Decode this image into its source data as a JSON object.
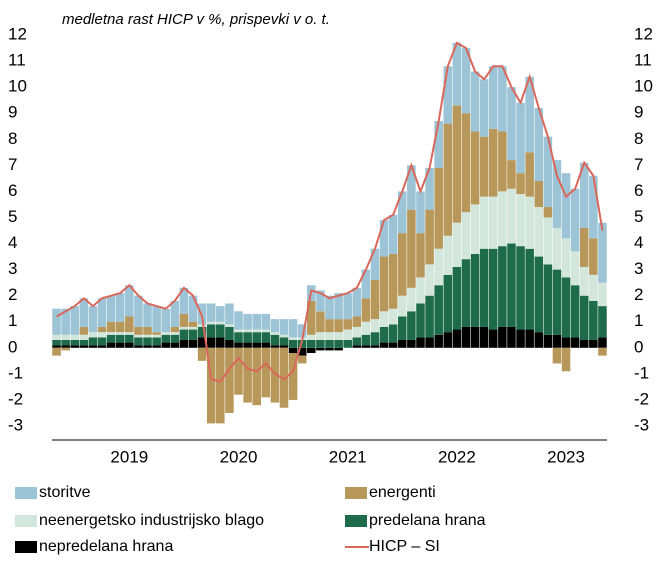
{
  "chart_data": {
    "type": "bar",
    "stacked": true,
    "title": "medletna rast HICP v %, prispevki v o. t.",
    "categories": [
      null,
      null,
      null,
      null,
      null,
      null,
      null,
      null,
      "2019",
      null,
      null,
      null,
      null,
      null,
      null,
      null,
      null,
      null,
      null,
      null,
      "2020",
      null,
      null,
      null,
      null,
      null,
      null,
      null,
      null,
      null,
      null,
      null,
      "2021",
      null,
      null,
      null,
      null,
      null,
      null,
      null,
      null,
      null,
      null,
      null,
      "2022",
      null,
      null,
      null,
      null,
      null,
      null,
      null,
      null,
      null,
      null,
      null,
      "2023",
      null,
      null,
      null,
      null
    ],
    "ylim": [
      -3,
      12
    ],
    "yticks": [
      -3,
      -2,
      -1,
      0,
      1,
      2,
      3,
      4,
      5,
      6,
      7,
      8,
      9,
      10,
      11,
      12
    ],
    "y2lim": [
      -3,
      12
    ],
    "y2ticks": [
      -3,
      -2,
      -1,
      0,
      1,
      2,
      3,
      4,
      5,
      6,
      7,
      8,
      9,
      10,
      11,
      12
    ],
    "series": [
      {
        "name": "storitve",
        "color": "#9cc4d6",
        "values": [
          1.0,
          1.0,
          1.1,
          1.1,
          1.0,
          1.1,
          1.0,
          1.1,
          1.2,
          1.2,
          0.9,
          1.0,
          0.9,
          1.0,
          1.0,
          1.0,
          0.8,
          0.7,
          0.6,
          0.8,
          0.7,
          0.6,
          0.6,
          0.6,
          0.5,
          0.6,
          0.7,
          0.5,
          0.6,
          0.8,
          0.9,
          1.0,
          1.0,
          1.1,
          1.1,
          1.2,
          1.4,
          1.5,
          1.6,
          1.7,
          1.6,
          1.6,
          1.8,
          2.2,
          2.4,
          2.5,
          2.3,
          2.2,
          2.4,
          2.5,
          2.8,
          2.7,
          2.9,
          2.8,
          2.7,
          2.6,
          2.5,
          2.4,
          2.5,
          2.4,
          2.3
        ]
      },
      {
        "name": "energenti",
        "color": "#b8985a",
        "values": [
          -0.3,
          -0.1,
          0.0,
          0.3,
          0.0,
          0.2,
          0.4,
          0.4,
          0.6,
          0.3,
          0.3,
          0.1,
          0.0,
          0.2,
          0.5,
          0.2,
          -0.5,
          -2.9,
          -2.9,
          -2.5,
          -1.8,
          -2.1,
          -2.2,
          -1.9,
          -2.1,
          -2.3,
          -1.8,
          -0.3,
          1.3,
          0.8,
          0.5,
          0.5,
          0.4,
          0.4,
          0.9,
          1.5,
          2.1,
          2.1,
          2.4,
          3.0,
          1.7,
          2.1,
          3.1,
          4.3,
          4.5,
          3.8,
          2.8,
          2.3,
          2.6,
          2.3,
          1.1,
          0.8,
          1.7,
          1.0,
          0.4,
          -0.6,
          -0.9,
          0.0,
          1.5,
          1.4,
          -0.3
        ]
      },
      {
        "name": "neenergetsko industrijsko blago",
        "color": "#d3e6dc",
        "values": [
          0.2,
          0.2,
          0.2,
          0.2,
          0.2,
          0.2,
          0.1,
          0.1,
          0.1,
          0.1,
          0.1,
          0.1,
          0.1,
          0.1,
          0.1,
          0.1,
          0.1,
          0.1,
          0.1,
          0.1,
          0.1,
          0.1,
          0.1,
          0.1,
          0.1,
          0.1,
          0.1,
          0.1,
          0.2,
          0.3,
          0.3,
          0.3,
          0.4,
          0.4,
          0.5,
          0.5,
          0.6,
          0.6,
          0.8,
          0.9,
          1.0,
          1.2,
          1.4,
          1.5,
          1.7,
          1.8,
          1.9,
          2.0,
          2.0,
          2.1,
          2.1,
          2.0,
          2.0,
          1.9,
          1.8,
          1.6,
          1.5,
          1.3,
          1.1,
          1.0,
          0.9
        ]
      },
      {
        "name": "predelana hrana",
        "color": "#1e6b4c",
        "values": [
          0.2,
          0.2,
          0.2,
          0.2,
          0.3,
          0.3,
          0.3,
          0.3,
          0.3,
          0.3,
          0.3,
          0.3,
          0.3,
          0.3,
          0.4,
          0.4,
          0.4,
          0.5,
          0.5,
          0.5,
          0.4,
          0.4,
          0.4,
          0.4,
          0.4,
          0.3,
          0.3,
          0.3,
          0.3,
          0.3,
          0.3,
          0.3,
          0.3,
          0.3,
          0.4,
          0.5,
          0.6,
          0.7,
          0.9,
          1.1,
          1.3,
          1.6,
          1.9,
          2.2,
          2.4,
          2.6,
          2.8,
          3.0,
          3.1,
          3.1,
          3.2,
          3.2,
          3.1,
          2.9,
          2.7,
          2.5,
          2.3,
          2.0,
          1.7,
          1.5,
          1.2
        ]
      },
      {
        "name": "nepredelana hrana",
        "color": "#000000",
        "values": [
          0.1,
          0.1,
          0.1,
          0.1,
          0.1,
          0.1,
          0.2,
          0.2,
          0.2,
          0.1,
          0.1,
          0.1,
          0.2,
          0.2,
          0.3,
          0.3,
          0.4,
          0.4,
          0.4,
          0.3,
          0.2,
          0.2,
          0.2,
          0.2,
          0.1,
          0.1,
          -0.2,
          -0.3,
          -0.2,
          -0.1,
          -0.1,
          -0.1,
          0.0,
          0.1,
          0.1,
          0.1,
          0.2,
          0.2,
          0.3,
          0.3,
          0.4,
          0.4,
          0.5,
          0.6,
          0.7,
          0.8,
          0.8,
          0.8,
          0.7,
          0.8,
          0.8,
          0.7,
          0.7,
          0.6,
          0.5,
          0.5,
          0.4,
          0.4,
          0.3,
          0.3,
          0.4
        ]
      },
      {
        "name": "HICP – SI",
        "type": "line",
        "color": "#d9675a",
        "values": [
          1.2,
          1.4,
          1.6,
          1.9,
          1.6,
          1.9,
          2.0,
          2.1,
          2.4,
          2.0,
          1.7,
          1.6,
          1.5,
          1.8,
          2.3,
          2.0,
          1.2,
          -1.2,
          -1.3,
          -0.8,
          -0.4,
          -0.8,
          -0.9,
          -0.6,
          -1.0,
          -1.2,
          -0.9,
          0.3,
          2.2,
          2.1,
          1.9,
          2.0,
          2.1,
          2.3,
          3.0,
          3.8,
          4.9,
          5.1,
          6.0,
          7.0,
          6.0,
          6.9,
          8.7,
          10.8,
          11.7,
          11.5,
          10.6,
          10.3,
          10.8,
          10.8,
          10.0,
          9.4,
          10.4,
          9.2,
          8.1,
          6.6,
          5.8,
          6.1,
          7.1,
          6.6,
          4.5
        ]
      }
    ]
  }
}
